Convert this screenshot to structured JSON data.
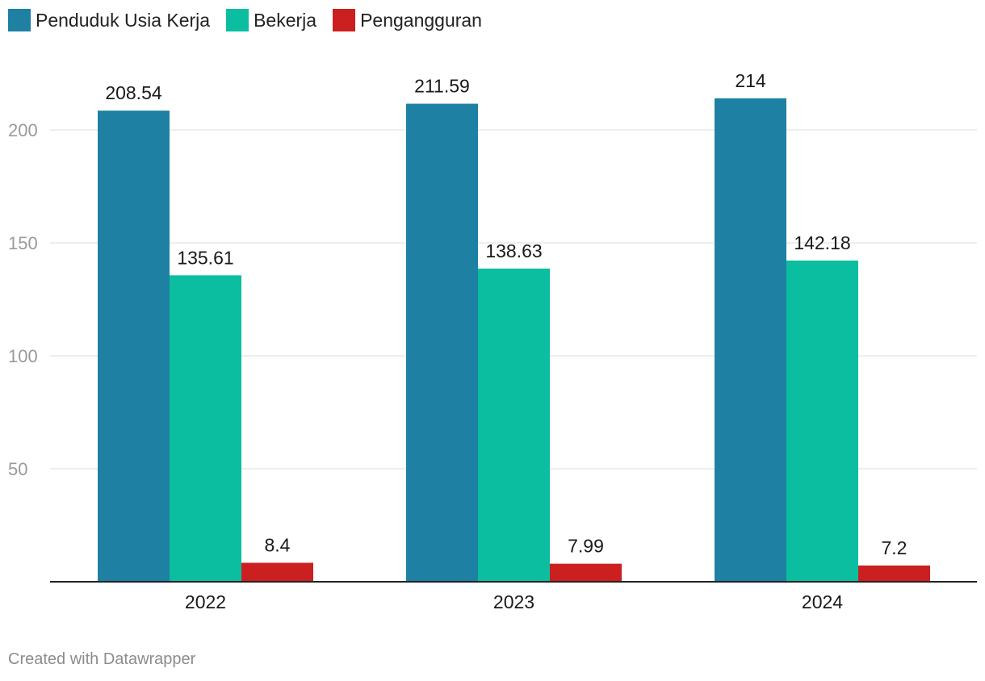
{
  "chart_data": {
    "type": "bar",
    "categories": [
      "2022",
      "2023",
      "2024"
    ],
    "series": [
      {
        "name": "Penduduk Usia Kerja",
        "color": "#1e81a3",
        "values": [
          208.54,
          211.59,
          214
        ],
        "labels": [
          "208.54",
          "211.59",
          "214"
        ]
      },
      {
        "name": "Bekerja",
        "color": "#0bbe9f",
        "values": [
          135.61,
          138.63,
          142.18
        ],
        "labels": [
          "135.61",
          "138.63",
          "142.18"
        ]
      },
      {
        "name": "Pengangguran",
        "color": "#cc1f1f",
        "values": [
          8.4,
          7.99,
          7.2
        ],
        "labels": [
          "8.4",
          "7.99",
          "7.2"
        ]
      }
    ],
    "yticks": [
      50,
      100,
      150,
      200
    ],
    "ylim": [
      0,
      215
    ],
    "grid": true,
    "legend": "top-left"
  },
  "footer": {
    "credit": "Created with Datawrapper"
  }
}
